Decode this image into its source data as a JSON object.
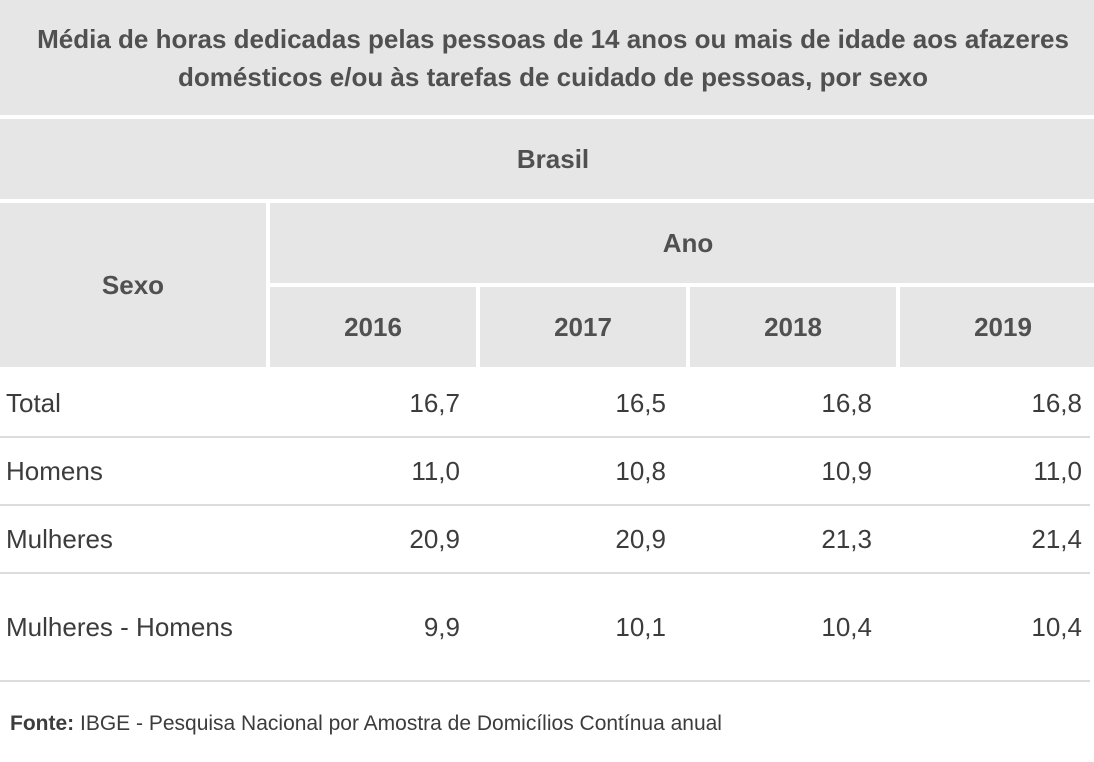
{
  "title": "Média de horas dedicadas pelas pessoas de 14 anos ou mais de idade aos afazeres domésticos e/ou às tarefas de cuidado de pessoas, por sexo",
  "region": "Brasil",
  "header": {
    "row_label": "Sexo",
    "group_label": "Ano",
    "years": [
      "2016",
      "2017",
      "2018",
      "2019"
    ]
  },
  "rows": [
    {
      "label": "Total",
      "values": [
        "16,7",
        "16,5",
        "16,8",
        "16,8"
      ]
    },
    {
      "label": "Homens",
      "values": [
        "11,0",
        "10,8",
        "10,9",
        "11,0"
      ]
    },
    {
      "label": "Mulheres",
      "values": [
        "20,9",
        "20,9",
        "21,3",
        "21,4"
      ]
    },
    {
      "label": "Mulheres - Homens",
      "values": [
        "9,9",
        "10,1",
        "10,4",
        "10,4"
      ]
    }
  ],
  "source": {
    "label": "Fonte:",
    "text": " IBGE - Pesquisa Nacional por Amostra de Domicílios Contínua anual"
  },
  "colors": {
    "header_bg": "#e6e6e6",
    "header_text": "#505050",
    "body_text": "#3c3c3c",
    "row_divider": "#dcdcdc"
  }
}
